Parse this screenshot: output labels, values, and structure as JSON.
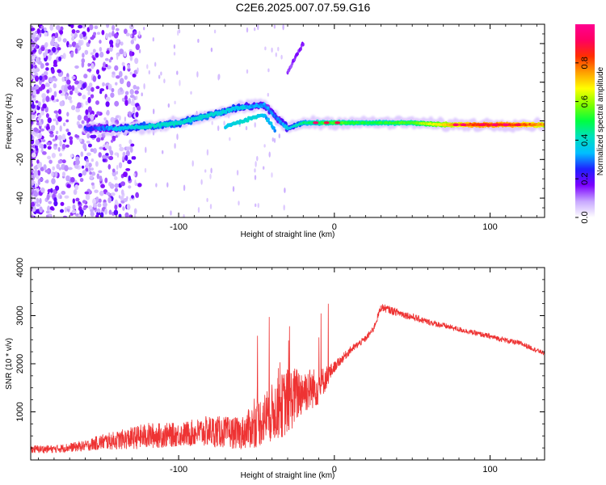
{
  "title": "C2E6.2025.007.07.59.G16",
  "colors": {
    "snr_line": "#ee3333",
    "axis": "#000000",
    "spectrum_low": "#e8d8ff",
    "spectrum_core": "#6a00ff"
  },
  "chart_data": [
    {
      "type": "heatmap",
      "name": "spectrogram",
      "xlabel": "Height of straight line (km)",
      "ylabel": "Frequency (Hz)",
      "xlim": [
        -195,
        135
      ],
      "ylim": [
        -50,
        50
      ],
      "x_ticks": [
        -100,
        0,
        100
      ],
      "x_tick_labels": [
        "-100",
        "0",
        "100"
      ],
      "y_ticks": [
        -40,
        -20,
        0,
        20,
        40
      ],
      "y_tick_labels": [
        "-40",
        "-20",
        "0",
        "20",
        "40"
      ],
      "colorbar": {
        "label": "Normalized spectral amplitude",
        "range": [
          0,
          1
        ],
        "ticks": [
          0.0,
          0.2,
          0.4,
          0.6,
          0.8
        ],
        "tick_labels": [
          "0.0",
          "0.2",
          "0.4",
          "0.6",
          "0.8"
        ],
        "stops": [
          "#ffffff",
          "#c8a8ff",
          "#7b00ff",
          "#2020ff",
          "#00bfff",
          "#00e0c0",
          "#00ff40",
          "#80ff00",
          "#ffff00",
          "#ffa000",
          "#ff3000",
          "#ff0060",
          "#ff0090"
        ]
      },
      "main_trace": [
        {
          "x": -155,
          "freq": -4,
          "amp": 0.25
        },
        {
          "x": -140,
          "freq": -4,
          "amp": 0.35
        },
        {
          "x": -120,
          "freq": -3,
          "amp": 0.4
        },
        {
          "x": -100,
          "freq": -1,
          "amp": 0.4
        },
        {
          "x": -80,
          "freq": 3,
          "amp": 0.4
        },
        {
          "x": -60,
          "freq": 7,
          "amp": 0.35
        },
        {
          "x": -45,
          "freq": 8,
          "amp": 0.3
        },
        {
          "x": -35,
          "freq": 0,
          "amp": 0.3
        },
        {
          "x": -30,
          "freq": -4,
          "amp": 0.35
        },
        {
          "x": -20,
          "freq": -1,
          "amp": 0.45
        },
        {
          "x": 0,
          "freq": -1,
          "amp": 0.55
        },
        {
          "x": 20,
          "freq": -1,
          "amp": 0.5
        },
        {
          "x": 50,
          "freq": -1,
          "amp": 0.55
        },
        {
          "x": 70,
          "freq": -2,
          "amp": 0.7
        },
        {
          "x": 90,
          "freq": -2,
          "amp": 0.85
        },
        {
          "x": 110,
          "freq": -2,
          "amp": 0.85
        },
        {
          "x": 135,
          "freq": -2,
          "amp": 0.75
        }
      ],
      "secondary_trace": [
        {
          "x": -70,
          "freq": -3,
          "amp": 0.35
        },
        {
          "x": -55,
          "freq": 1,
          "amp": 0.4
        },
        {
          "x": -45,
          "freq": 3,
          "amp": 0.35
        },
        {
          "x": -38,
          "freq": -5,
          "amp": 0.3
        }
      ],
      "rising_trace": [
        {
          "x": -30,
          "freq": 25,
          "amp": 0.15
        },
        {
          "x": -25,
          "freq": 33,
          "amp": 0.15
        },
        {
          "x": -20,
          "freq": 40,
          "amp": 0.15
        }
      ]
    },
    {
      "type": "line",
      "name": "snr",
      "xlabel": "Height of straight line (km)",
      "ylabel": "SNR (10 * v/v)",
      "xlim": [
        -195,
        135
      ],
      "ylim": [
        0,
        4000
      ],
      "x_ticks": [
        -100,
        0,
        100
      ],
      "x_tick_labels": [
        "-100",
        "0",
        "100"
      ],
      "y_ticks": [
        1000,
        2000,
        3000,
        4000
      ],
      "y_tick_labels": [
        "1000",
        "2000",
        "3000",
        "4000"
      ],
      "x": [
        -195,
        -180,
        -160,
        -150,
        -140,
        -120,
        -100,
        -80,
        -60,
        -50,
        -40,
        -30,
        -20,
        -10,
        0,
        10,
        20,
        25,
        30,
        40,
        60,
        80,
        100,
        120,
        135
      ],
      "baseline": [
        200,
        200,
        260,
        320,
        350,
        420,
        450,
        500,
        450,
        600,
        800,
        1000,
        1300,
        1400,
        1900,
        2250,
        2500,
        2700,
        3150,
        3050,
        2850,
        2700,
        2550,
        2400,
        2200
      ],
      "noise": [
        150,
        150,
        200,
        300,
        350,
        500,
        450,
        600,
        600,
        900,
        1100,
        1300,
        900,
        700,
        200,
        150,
        120,
        120,
        150,
        150,
        120,
        100,
        100,
        100,
        80
      ]
    }
  ]
}
